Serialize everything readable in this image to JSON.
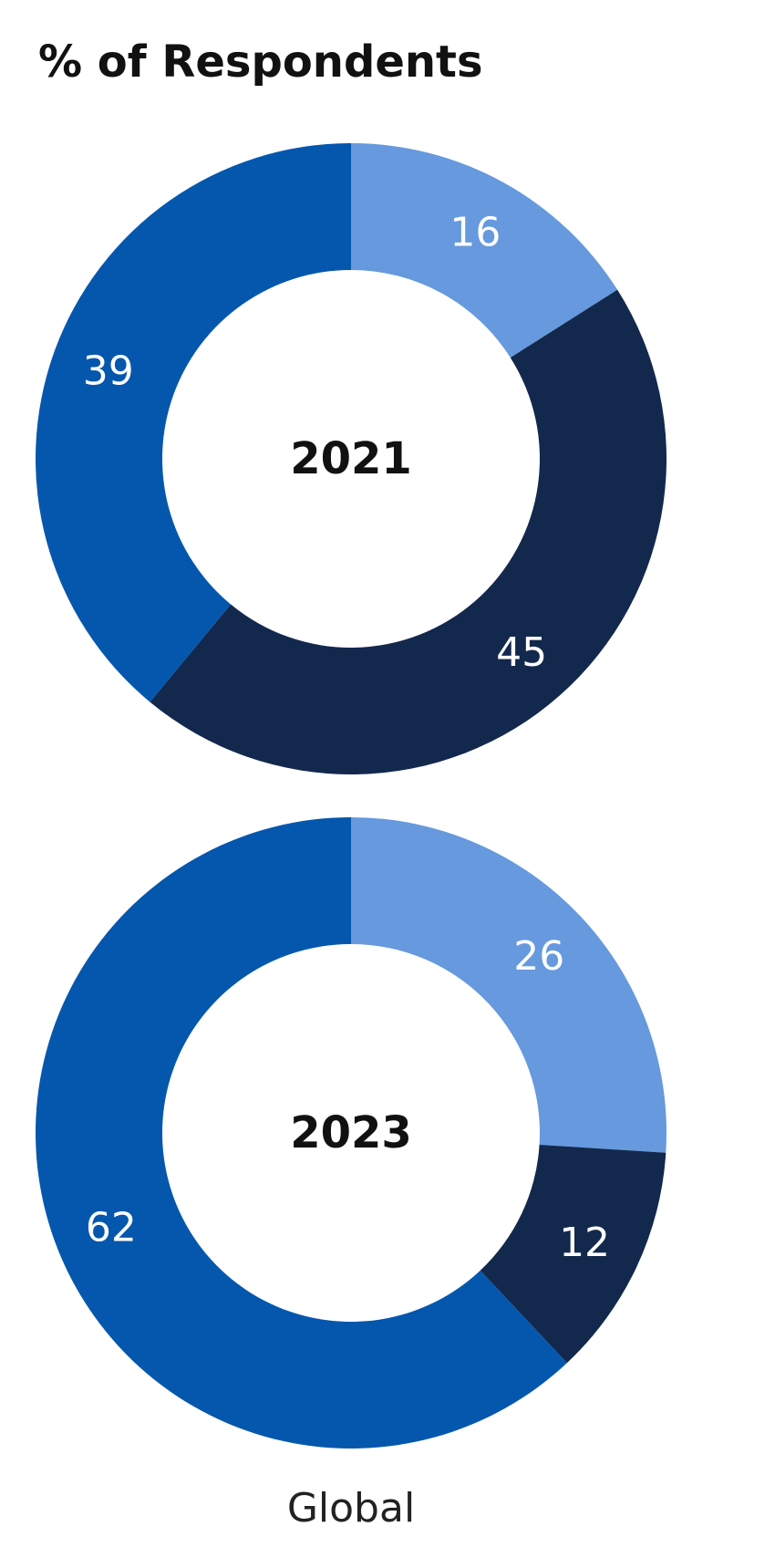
{
  "title": "% of Respondents",
  "footer": "Global",
  "colors": {
    "light": "#6699dd",
    "dark": "#13284d",
    "medium": "#0557ad",
    "label": "#ffffff",
    "center_text": "#111111"
  },
  "chart_data": [
    {
      "type": "pie",
      "donut": true,
      "center_label": "2021",
      "slices": [
        {
          "value": 16,
          "label": "16",
          "color": "#6699dd"
        },
        {
          "value": 45,
          "label": "45",
          "color": "#13284d"
        },
        {
          "value": 39,
          "label": "39",
          "color": "#0557ad"
        }
      ]
    },
    {
      "type": "pie",
      "donut": true,
      "center_label": "2023",
      "slices": [
        {
          "value": 26,
          "label": "26",
          "color": "#6699dd"
        },
        {
          "value": 12,
          "label": "12",
          "color": "#13284d"
        },
        {
          "value": 62,
          "label": "62",
          "color": "#0557ad"
        }
      ]
    }
  ]
}
